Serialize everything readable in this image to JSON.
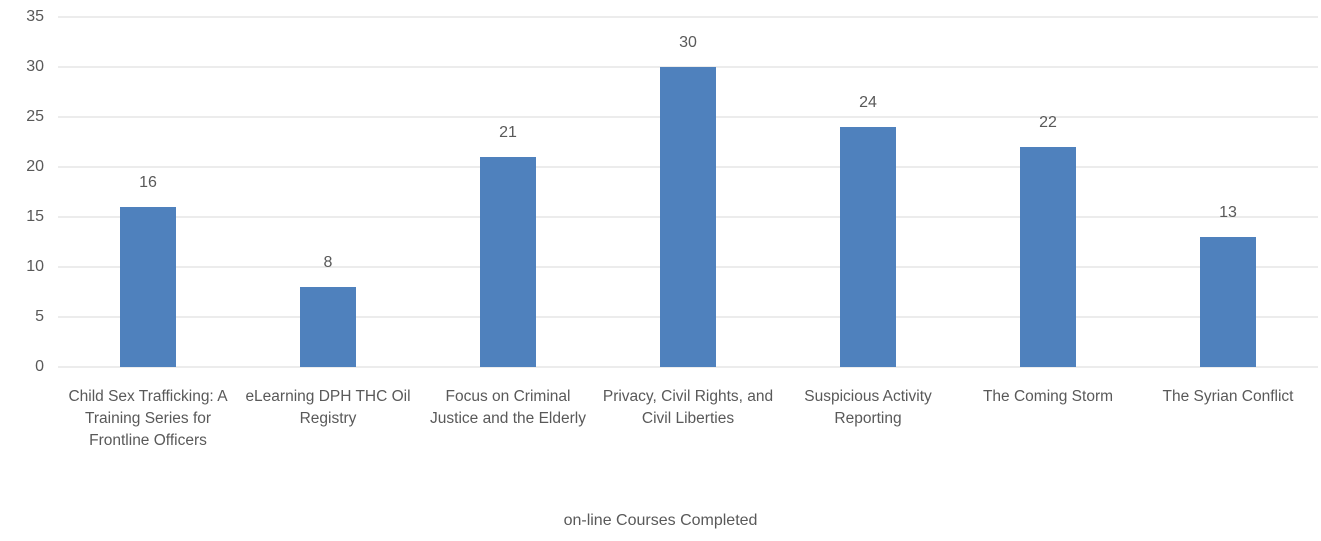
{
  "chart_data": {
    "type": "bar",
    "x_label": "on-line Courses Completed",
    "categories": [
      "Child Sex Trafficking: A Training Series for Frontline Officers",
      "eLearning DPH THC Oil Registry",
      "Focus on Criminal Justice and the Elderly",
      "Privacy, Civil Rights, and Civil Liberties",
      "Suspicious Activity Reporting",
      "The Coming Storm",
      "The Syrian Conflict"
    ],
    "values": [
      16,
      8,
      21,
      30,
      24,
      22,
      13
    ],
    "color": "#4f81bd",
    "ylim": [
      0,
      35
    ],
    "yticks": [
      0,
      5,
      10,
      15,
      20,
      25,
      30,
      35
    ],
    "grid": true
  }
}
